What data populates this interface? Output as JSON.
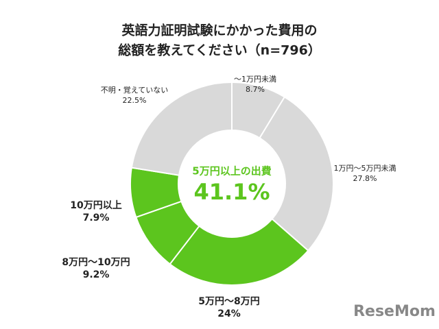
{
  "chart_data": {
    "type": "donut",
    "title": [
      "英語力証明試験にかかった費用の",
      "総額を教えてください（n=796）"
    ],
    "categories": [
      "～1万円未満",
      "1万円～5万円未満",
      "5万円～8万円",
      "8万円～10万円",
      "10万円以上",
      "不明・覚えていない"
    ],
    "values": [
      8.7,
      27.8,
      24,
      9.2,
      7.9,
      22.5
    ],
    "value_labels": [
      "8.7%",
      "27.8%",
      "24%",
      "9.2%",
      "7.9%",
      "22.5%"
    ],
    "colors": [
      "#d9d9d9",
      "#d9d9d9",
      "#5cc51e",
      "#5cc51e",
      "#5cc51e",
      "#d9d9d9"
    ],
    "center_text": "5万円以上の出費",
    "center_value": {
      "value": 41.1,
      "label": "41.1%"
    },
    "watermark": "ReseMom"
  }
}
